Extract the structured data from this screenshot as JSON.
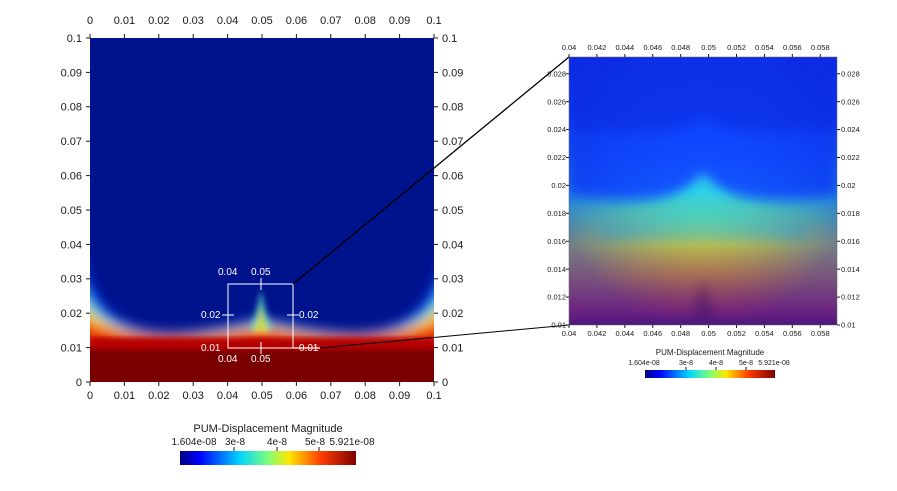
{
  "colors": {
    "background": "#ffffff",
    "jet_dark_blue": "#00128c",
    "jet_blue": "#0a3dff",
    "jet_cyan": "#2fd3e4",
    "jet_yellow": "#f2e81a",
    "jet_orange": "#ff7a00",
    "jet_red": "#d80d0d",
    "jet_dark_red": "#6d0000",
    "zoom_box": "#ffffff",
    "connector": "#000000"
  },
  "main_view": {
    "x_ticks": [
      "0",
      "0.01",
      "0.02",
      "0.03",
      "0.04",
      "0.05",
      "0.06",
      "0.07",
      "0.08",
      "0.09",
      "0.1"
    ],
    "y_ticks": [
      "0",
      "0.01",
      "0.02",
      "0.03",
      "0.04",
      "0.05",
      "0.06",
      "0.07",
      "0.08",
      "0.09",
      "0.1"
    ],
    "zoom_box_labels": {
      "top_left": "0.04",
      "top_right": "0.05",
      "bottom_left": "0.04",
      "bottom_right": "0.05",
      "left_upper": "0.02",
      "right_upper": "0.02",
      "left_lower": "0.01",
      "right_lower": "0.01"
    },
    "colorbar": {
      "title": "PUM-Displacement Magnitude",
      "labels": [
        "1.604e-08",
        "3e-8",
        "4e-8",
        "5e-8",
        "5.921e-08"
      ]
    }
  },
  "zoom_view": {
    "x_ticks": [
      "0.04",
      "0.042",
      "0.044",
      "0.046",
      "0.048",
      "0.05",
      "0.052",
      "0.054",
      "0.056",
      "0.058"
    ],
    "y_ticks": [
      "0.01",
      "0.012",
      "0.014",
      "0.016",
      "0.018",
      "0.02",
      "0.022",
      "0.024",
      "0.026",
      "0.028"
    ],
    "colorbar": {
      "title": "PUM-Displacement Magnitude",
      "labels": [
        "1.604e-08",
        "3e-8",
        "4e-8",
        "5e-8",
        "5.921e-08"
      ]
    }
  }
}
